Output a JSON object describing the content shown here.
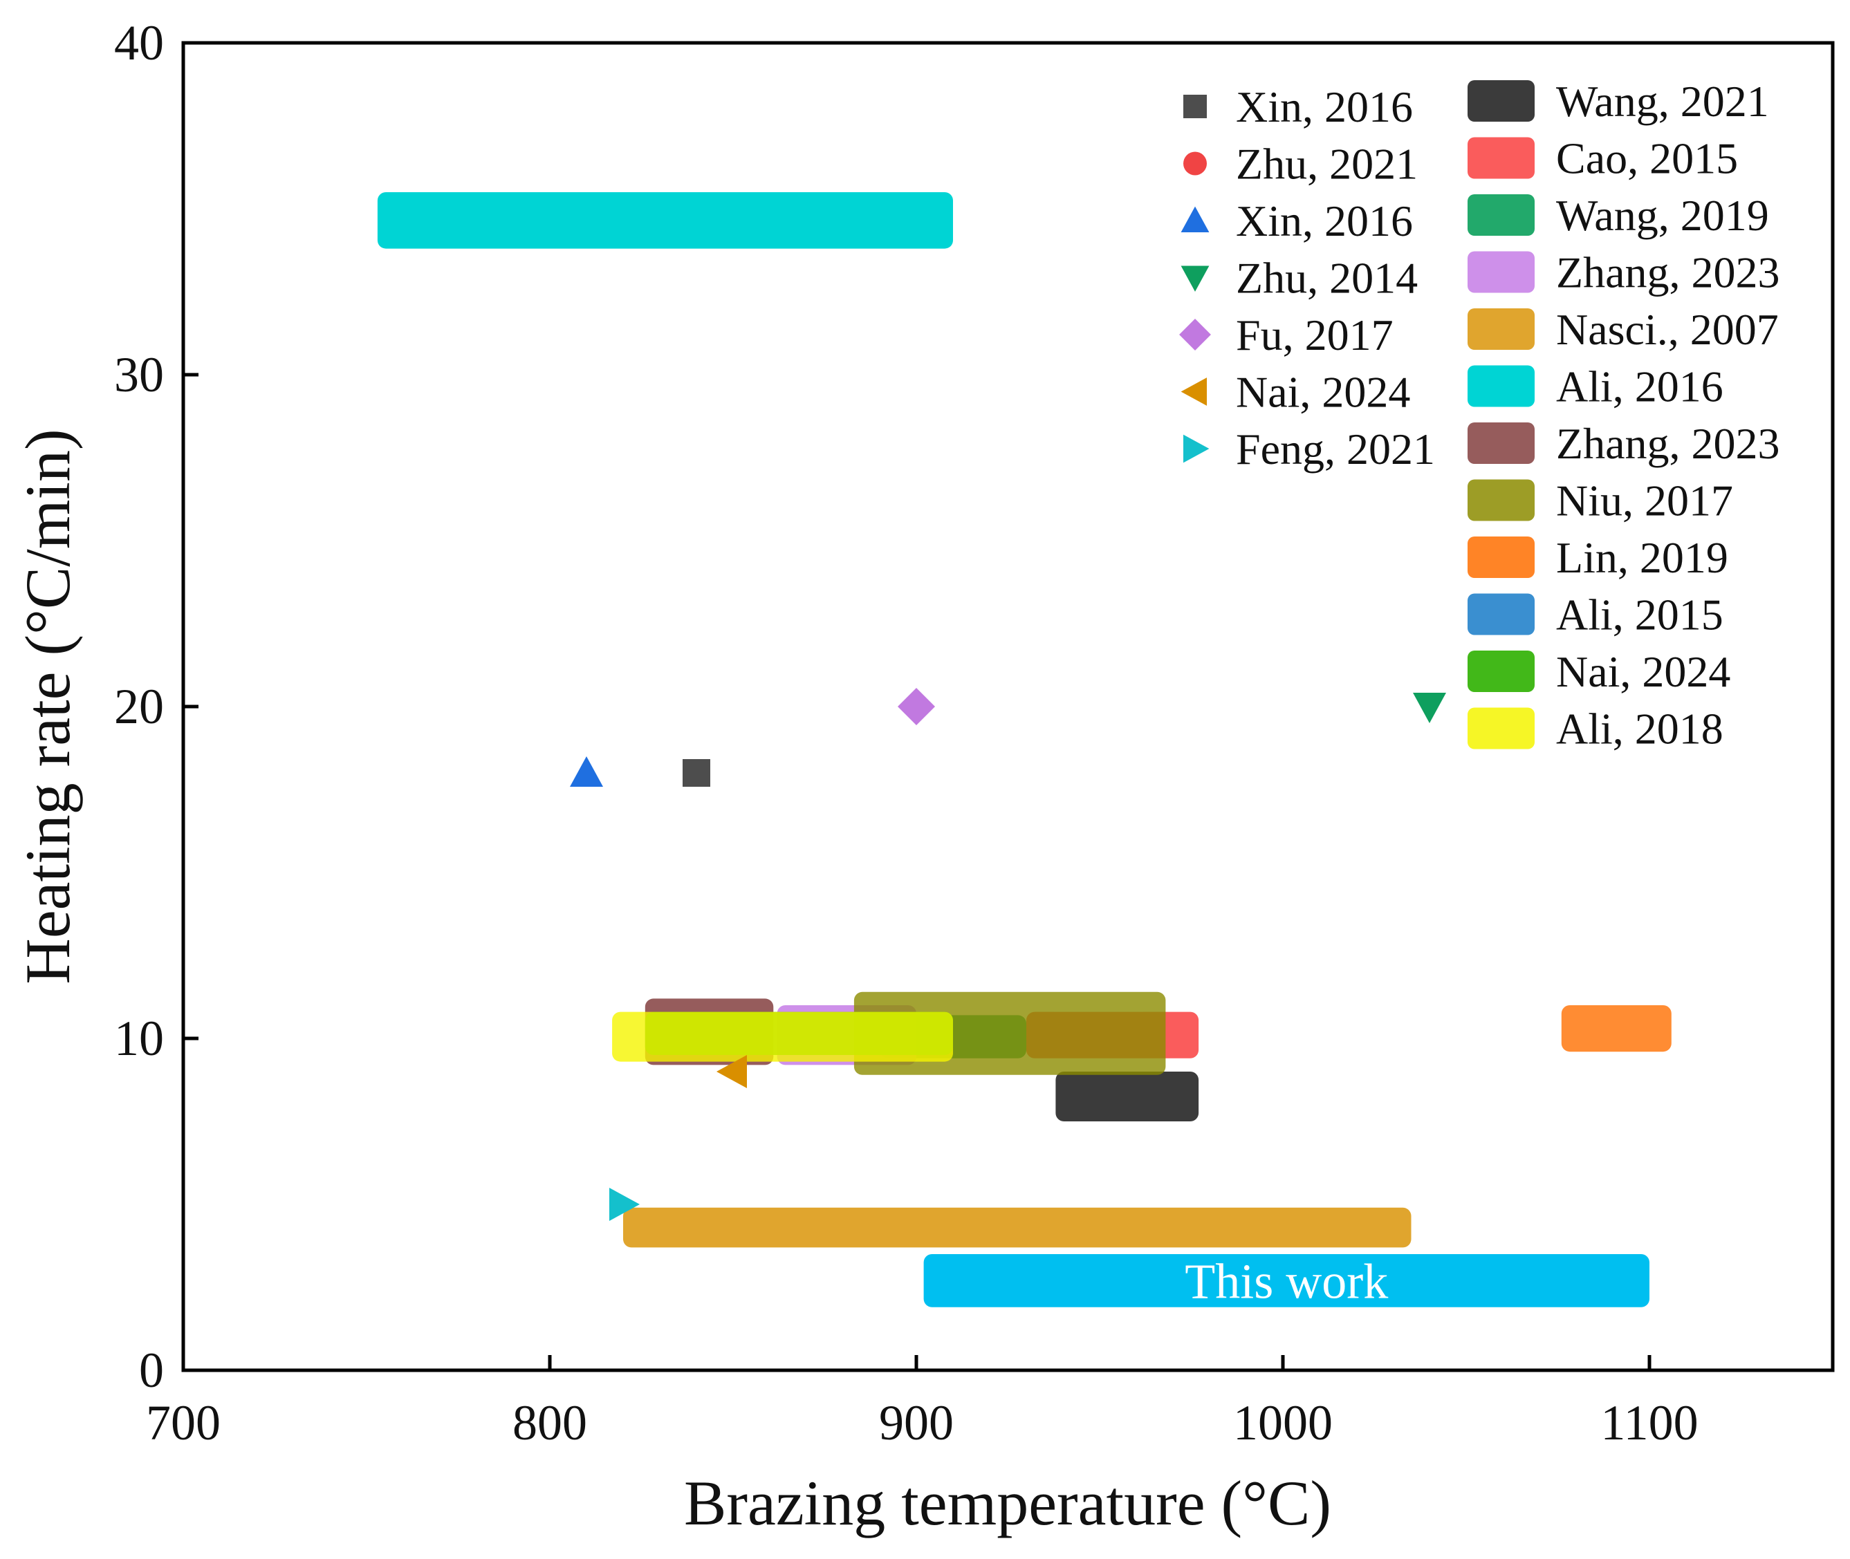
{
  "chart_data": {
    "type": "scatter",
    "xlabel": "Brazing temperature (°C)",
    "ylabel": "Heating rate (°C/min)",
    "xlim": [
      700,
      1150
    ],
    "ylim": [
      0,
      40
    ],
    "xticks": [
      700,
      800,
      900,
      1000,
      1100
    ],
    "yticks": [
      0,
      10,
      20,
      30,
      40
    ],
    "grid": false,
    "legend_position": "top-right",
    "point_series": [
      {
        "name": "Xin, 2016",
        "marker": "square",
        "color": "#4d4d4d",
        "x": 840,
        "y": 18
      },
      {
        "name": "Zhu, 2021",
        "marker": "circle",
        "color": "#f04444",
        "x": null,
        "y": null
      },
      {
        "name": "Xin, 2016",
        "marker": "triangle-up",
        "color": "#1f6fe0",
        "x": 810,
        "y": 18
      },
      {
        "name": "Zhu, 2014",
        "marker": "triangle-down",
        "color": "#0e9f5e",
        "x": 1040,
        "y": 20
      },
      {
        "name": "Fu, 2017",
        "marker": "diamond",
        "color": "#c179e0",
        "x": 900,
        "y": 20
      },
      {
        "name": "Nai, 2024",
        "marker": "triangle-left",
        "color": "#d98f00",
        "x": 850,
        "y": 9
      },
      {
        "name": "Feng, 2021",
        "marker": "triangle-right",
        "color": "#14c0cc",
        "x": 820,
        "y": 5
      }
    ],
    "range_series": [
      {
        "name": "Wang, 2021",
        "color": "#3b3b3b",
        "opacity": 1.0,
        "x_min": 938,
        "x_max": 977,
        "y_min": 7.5,
        "y_max": 9.0
      },
      {
        "name": "Cao, 2015",
        "color": "#f94a4a",
        "opacity": 0.9,
        "x_min": 930,
        "x_max": 977,
        "y_min": 9.4,
        "y_max": 10.8
      },
      {
        "name": "Wang, 2019",
        "color": "#0aa05b",
        "opacity": 0.9,
        "x_min": 890,
        "x_max": 930,
        "y_min": 9.4,
        "y_max": 10.7
      },
      {
        "name": "Zhang, 2023",
        "color": "#c57ce6",
        "opacity": 0.85,
        "x_min": 862,
        "x_max": 900,
        "y_min": 9.2,
        "y_max": 11.0
      },
      {
        "name": "Nasci., 2007",
        "color": "#e0a52e",
        "opacity": 1.0,
        "x_min": 820,
        "x_max": 1035,
        "y_min": 3.7,
        "y_max": 4.9
      },
      {
        "name": "Ali, 2016",
        "color": "#00d4d4",
        "opacity": 1.0,
        "x_min": 753,
        "x_max": 910,
        "y_min": 33.8,
        "y_max": 35.5
      },
      {
        "name": "Zhang, 2023",
        "color": "#8b4a4a",
        "opacity": 0.9,
        "x_min": 826,
        "x_max": 861,
        "y_min": 9.2,
        "y_max": 11.2
      },
      {
        "name": "Niu, 2017",
        "color": "#8c8c00",
        "opacity": 0.8,
        "x_min": 883,
        "x_max": 968,
        "y_min": 8.9,
        "y_max": 11.4
      },
      {
        "name": "Lin, 2019",
        "color": "#ff6f00",
        "opacity": 0.8,
        "x_min": 1076,
        "x_max": 1106,
        "y_min": 9.6,
        "y_max": 11.0
      },
      {
        "name": "Ali, 2015",
        "color": "#3a8fd0",
        "opacity": 1.0,
        "x_min": null,
        "x_max": null,
        "y_min": null,
        "y_max": null
      },
      {
        "name": "Nai, 2024",
        "color": "#2db000",
        "opacity": 0.9,
        "x_min": 826,
        "x_max": 910,
        "y_min": 9.5,
        "y_max": 10.8
      },
      {
        "name": "Ali, 2018",
        "color": "#f5f500",
        "opacity": 0.8,
        "x_min": 817,
        "x_max": 910,
        "y_min": 9.3,
        "y_max": 10.8
      },
      {
        "name": "This work",
        "color": "#00bff0",
        "opacity": 1.0,
        "x_min": 902,
        "x_max": 1100,
        "y_min": 1.9,
        "y_max": 3.5,
        "inline_label": "This work"
      }
    ]
  }
}
